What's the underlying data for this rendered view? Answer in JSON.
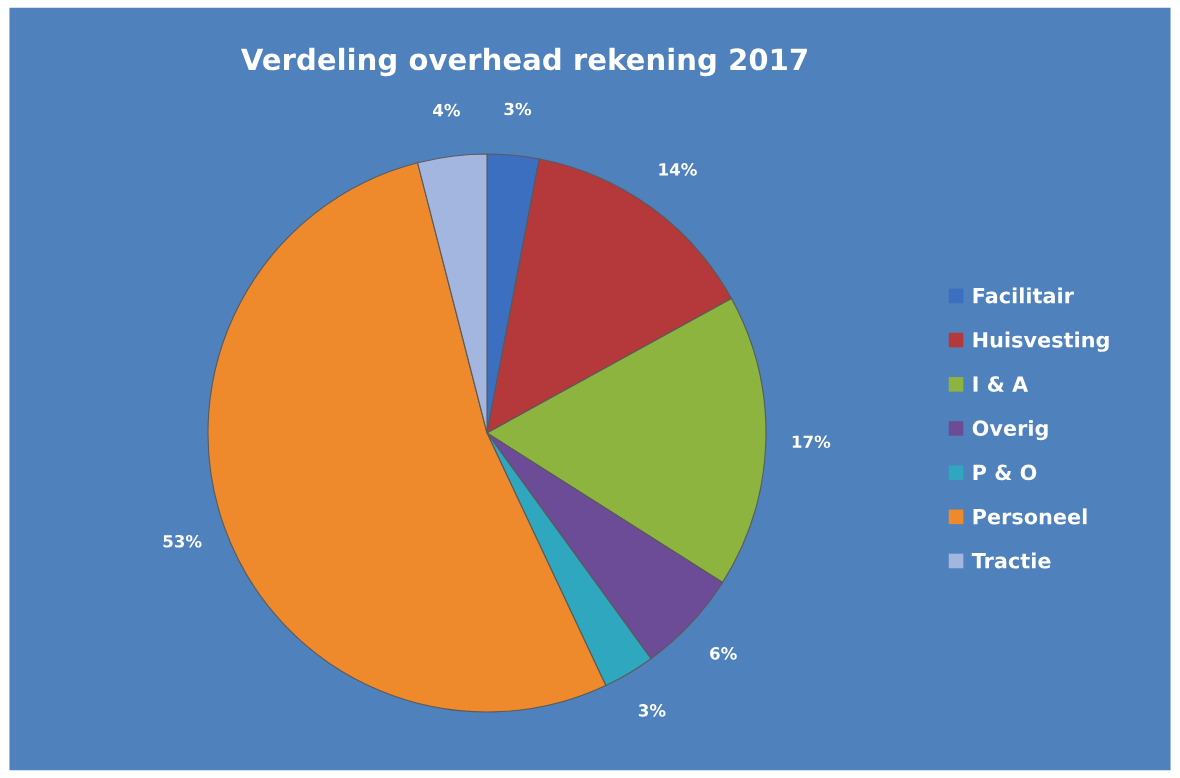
{
  "chart_data": {
    "type": "pie",
    "title": "Verdeling overhead rekening 2017",
    "categories": [
      "Facilitair",
      "Huisvesting",
      "I & A",
      "Overig",
      "P & O",
      "Personeel",
      "Tractie"
    ],
    "values": [
      3,
      14,
      17,
      6,
      3,
      53,
      4
    ],
    "colors": [
      "#3c6fbf",
      "#b5393a",
      "#8cb43f",
      "#6c4b97",
      "#2fa8bf",
      "#ef8a2c",
      "#a3b6e0"
    ],
    "value_labels": [
      "3%",
      "14%",
      "17%",
      "6%",
      "3%",
      "53%",
      "4%"
    ],
    "legend": "right"
  }
}
